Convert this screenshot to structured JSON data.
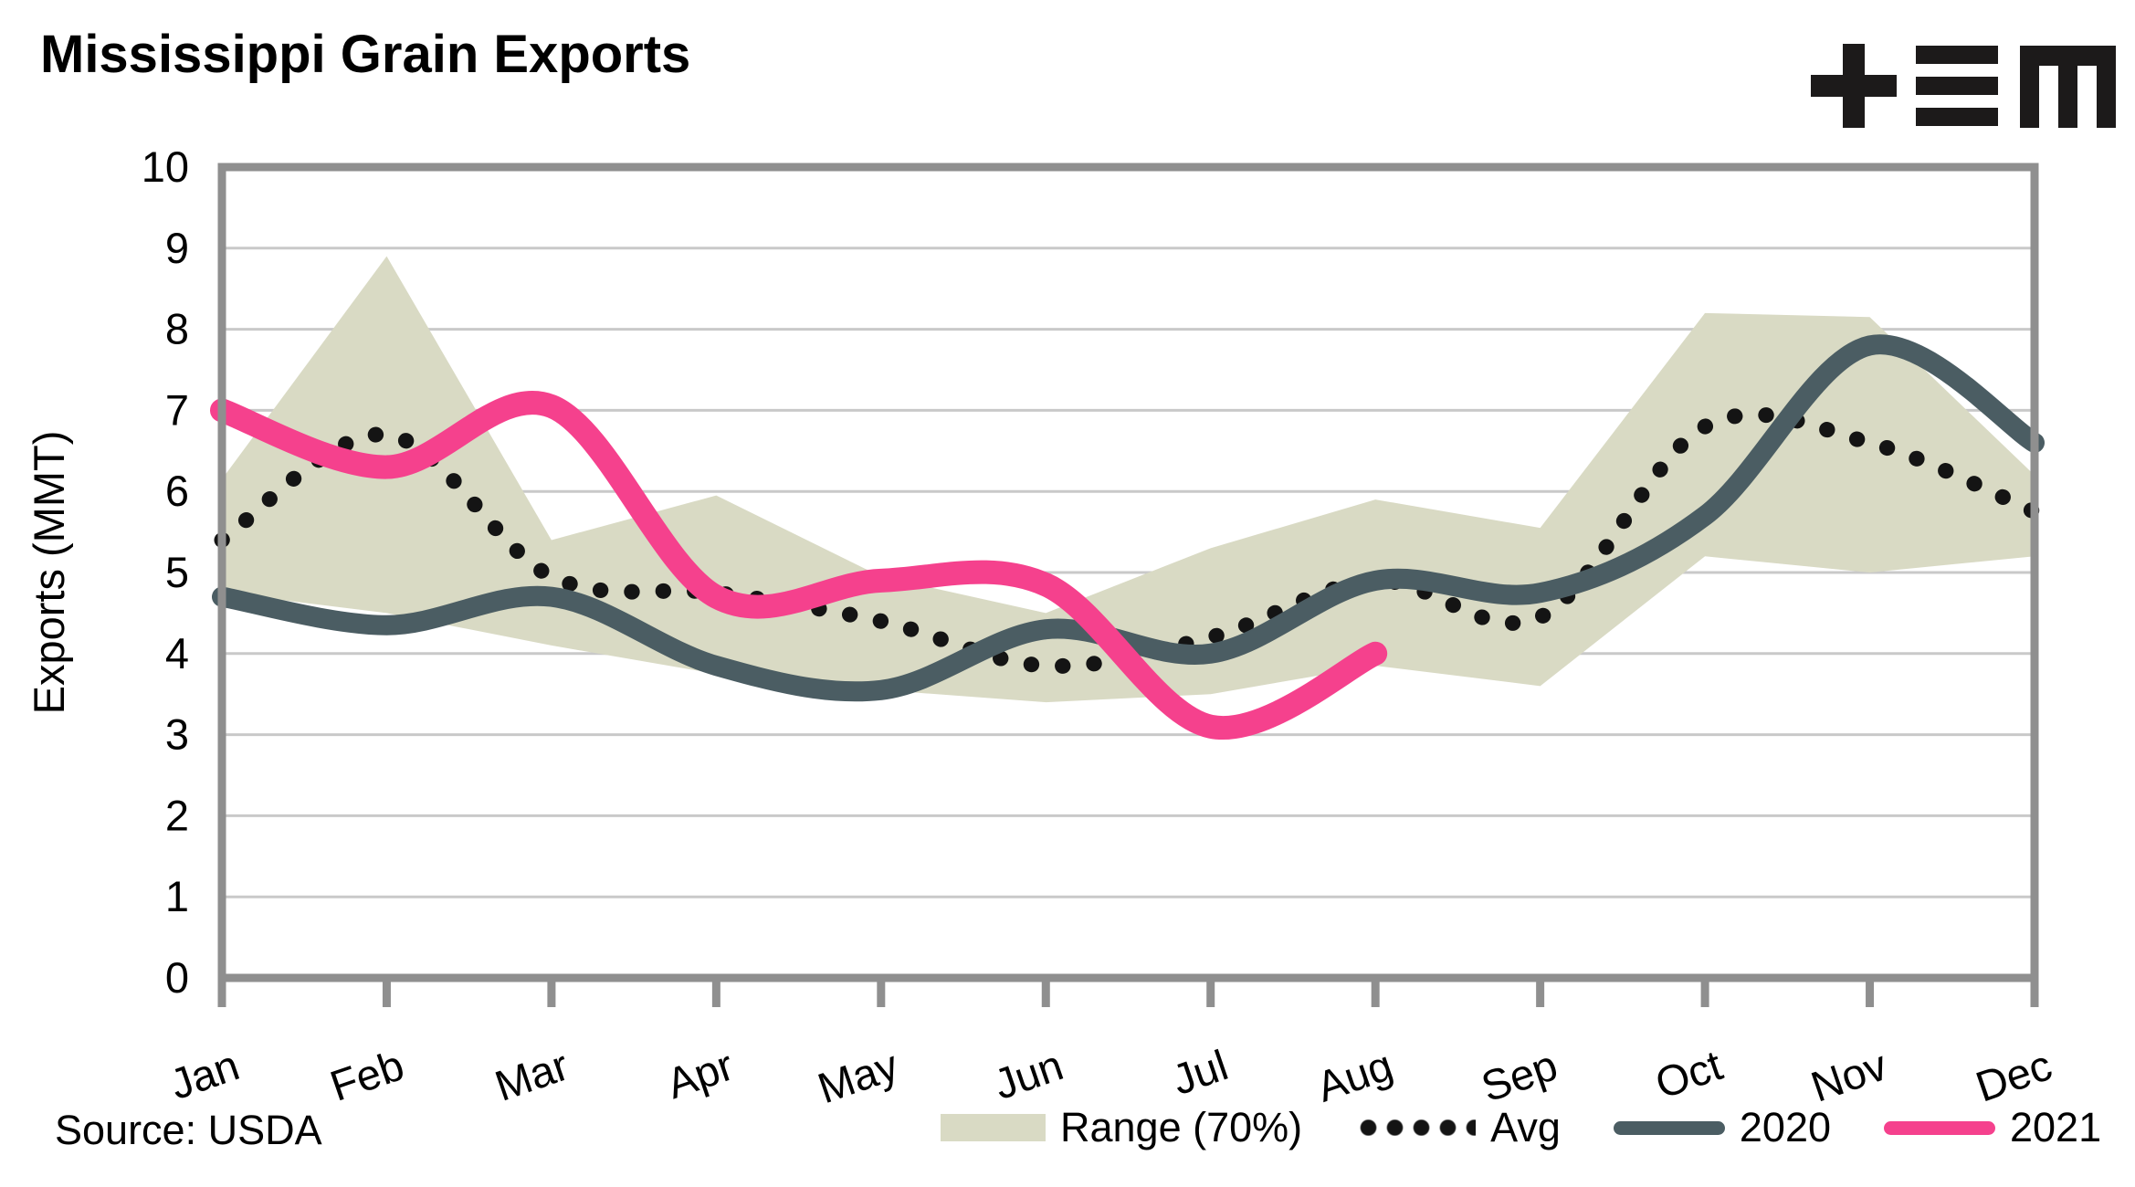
{
  "header": {
    "title": "Mississippi Grain Exports"
  },
  "logo": {
    "marks": [
      "plus-glyph",
      "triple-bar-glyph",
      "m-glyph"
    ],
    "color": "#1c1a1a"
  },
  "footer": {
    "source_label": "Source: USDA"
  },
  "legend": {
    "range_label": "Range (70%)",
    "avg_label": "Avg",
    "y2020_label": "2020",
    "y2021_label": "2021"
  },
  "colors": {
    "band": "#d9dac4",
    "avg": "#141414",
    "y2020": "#4b5d63",
    "y2021": "#f5418d",
    "grid": "#c9c9c9",
    "axis": "#8f8f8f",
    "text": "#000000"
  },
  "chart_data": {
    "type": "line",
    "title": "Mississippi Grain Exports",
    "xlabel": "",
    "ylabel": "Exports (MMT)",
    "ylim": [
      0,
      10
    ],
    "yticks": [
      0,
      1,
      2,
      3,
      4,
      5,
      6,
      7,
      8,
      9,
      10
    ],
    "grid": "horizontal gridlines at each integer, band drawn over grid",
    "legend_position": "bottom-right",
    "categories": [
      "Jan",
      "Feb",
      "Mar",
      "Apr",
      "May",
      "Jun",
      "Jul",
      "Aug",
      "Sep",
      "Oct",
      "Nov",
      "Dec"
    ],
    "series": [
      {
        "name": "Range (70%)",
        "kind": "band",
        "low": [
          4.75,
          4.5,
          4.1,
          3.75,
          3.55,
          3.4,
          3.5,
          3.85,
          3.6,
          5.2,
          5.0,
          5.2
        ],
        "high": [
          6.15,
          8.9,
          5.4,
          5.95,
          4.95,
          4.5,
          5.3,
          5.9,
          5.55,
          8.2,
          8.15,
          6.2
        ]
      },
      {
        "name": "Avg",
        "kind": "dotted-line",
        "values": [
          5.4,
          6.7,
          4.95,
          4.75,
          4.4,
          3.85,
          4.2,
          4.9,
          4.45,
          6.8,
          6.6,
          5.75
        ]
      },
      {
        "name": "2020",
        "kind": "line",
        "values": [
          4.7,
          4.35,
          4.7,
          3.85,
          3.55,
          4.3,
          4.0,
          4.9,
          4.75,
          5.7,
          7.8,
          6.6
        ]
      },
      {
        "name": "2021",
        "kind": "line",
        "values": [
          7.0,
          6.3,
          7.05,
          4.7,
          4.9,
          4.85,
          3.1,
          4.0,
          null,
          null,
          null,
          null
        ]
      }
    ]
  }
}
